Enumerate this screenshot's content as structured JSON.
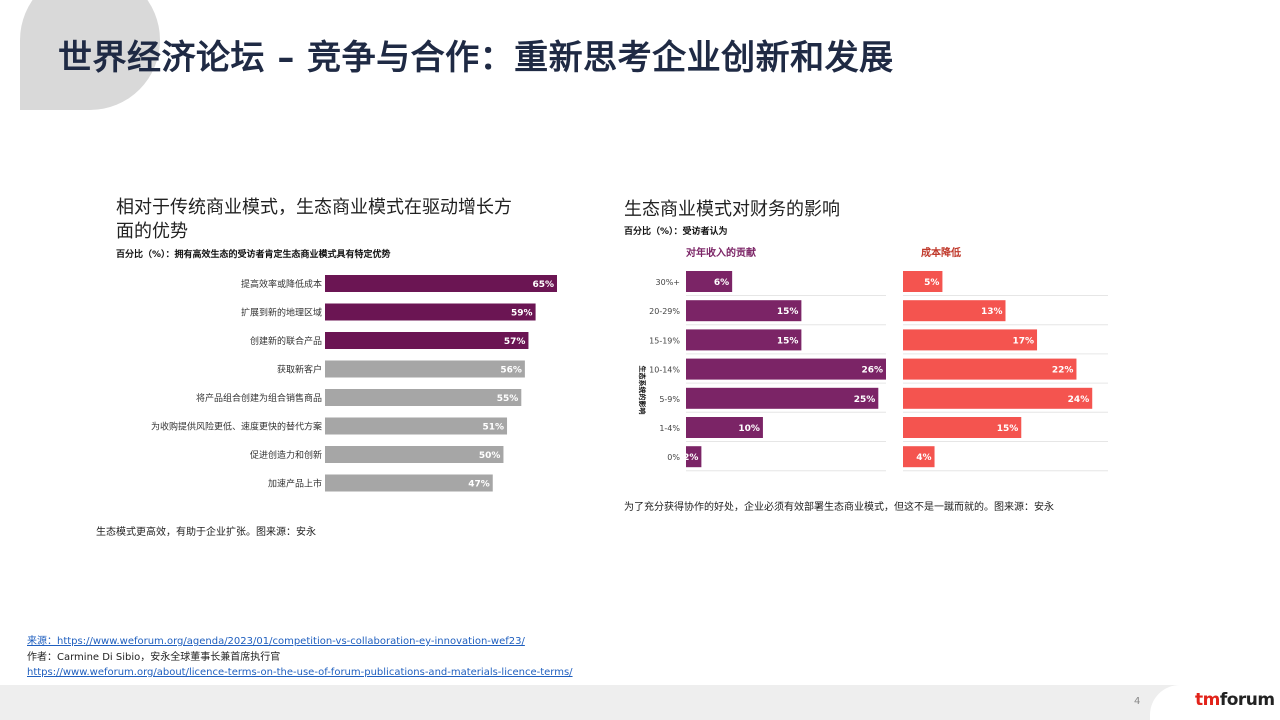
{
  "title": "世界经济论坛 – 竞争与合作：重新思考企业创新和发展",
  "left_panel": {
    "title": "相对于传统商业模式，生态商业模式在驱动增长方面的优势",
    "subtitle": "百分比（%）：拥有高效生态的受访者肯定生态商业模式具有特定优势",
    "caption": "生态模式更高效，有助于企业扩张。图来源：安永"
  },
  "right_panel": {
    "title": "生态商业模式对财务的影响",
    "subtitle": "百分比（%）：受访者认为",
    "caption": "为了充分获得协作的好处，企业必须有效部署生态商业模式，但这不是一蹴而就的。图来源：安永"
  },
  "chart_data": [
    {
      "type": "bar",
      "orientation": "horizontal",
      "categories": [
        "提高效率或降低成本",
        "扩展到新的地理区域",
        "创建新的联合产品",
        "获取新客户",
        "将产品组合创建为组合销售商品",
        "为收购提供风险更低、速度更快的替代方案",
        "促进创造力和创新",
        "加速产品上市"
      ],
      "values": [
        65,
        59,
        57,
        56,
        55,
        51,
        50,
        47
      ],
      "labels": [
        "65%",
        "59%",
        "57%",
        "56%",
        "55%",
        "51%",
        "50%",
        "47%"
      ],
      "highlighted_count": 3,
      "colors": {
        "highlight": "#6b1553",
        "default": "#a6a6a6"
      },
      "xlim": [
        0,
        65
      ]
    },
    {
      "type": "bar",
      "orientation": "horizontal",
      "categories": [
        "30%+",
        "20-29%",
        "15-19%",
        "10-14%",
        "5-9%",
        "1-4%",
        "0%"
      ],
      "axis_label": "生态系统的影响",
      "series": [
        {
          "name": "对年收入的贡献",
          "values": [
            6,
            15,
            15,
            26,
            25,
            10,
            2
          ],
          "labels": [
            "6%",
            "15%",
            "15%",
            "26%",
            "25%",
            "10%",
            "2%"
          ],
          "color": "#7b2466"
        },
        {
          "name": "成本降低",
          "values": [
            5,
            13,
            17,
            22,
            24,
            15,
            4
          ],
          "labels": [
            "5%",
            "13%",
            "17%",
            "22%",
            "24%",
            "15%",
            "4%"
          ],
          "color": "#f4544f"
        }
      ],
      "xlim": [
        0,
        26
      ]
    }
  ],
  "sources": {
    "line1": "来源：https://www.weforum.org/agenda/2023/01/competition-vs-collaboration-ey-innovation-wef23/",
    "line2": "作者：Carmine Di Sibio，安永全球董事长兼首席执行官",
    "line3": "https://www.weforum.org/about/licence-terms-on-the-use-of-forum-publications-and-materials-licence-terms/"
  },
  "footer": {
    "page_number": "4",
    "logo_tm": "tm",
    "logo_forum": "forum"
  }
}
